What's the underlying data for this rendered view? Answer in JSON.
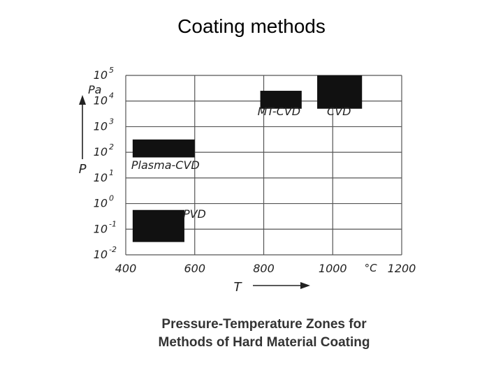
{
  "slide": {
    "title": "Coating methods"
  },
  "caption": {
    "line1": "Pressure-Temperature Zones for",
    "line2": "Methods of Hard Material Coating"
  },
  "chart_data": {
    "type": "range-bar",
    "xlabel": "T",
    "xunit": "°C",
    "ylabel": "P",
    "yunit": "Pa",
    "xlim": [
      400,
      1200
    ],
    "xticks": [
      "400",
      "600",
      "800",
      "1000",
      "1200"
    ],
    "yscale": "log",
    "ylim_exponent": [
      -2,
      5
    ],
    "yticks_base": "10",
    "yticks_exp": [
      "-2",
      "-1",
      "0",
      "1",
      "2",
      "3",
      "4",
      "5"
    ],
    "grid": true,
    "zones": [
      {
        "label": "PVD",
        "t_min": 420,
        "t_max": 570,
        "p_exp_min": -1.5,
        "p_exp_max": -0.25
      },
      {
        "label": "Plasma-CVD",
        "t_min": 420,
        "t_max": 600,
        "p_exp_min": 1.8,
        "p_exp_max": 2.5
      },
      {
        "label": "MT-CVD",
        "t_min": 790,
        "t_max": 910,
        "p_exp_min": 3.7,
        "p_exp_max": 4.4
      },
      {
        "label": "CVD",
        "t_min": 955,
        "t_max": 1085,
        "p_exp_min": 3.7,
        "p_exp_max": 5.0
      }
    ]
  },
  "colors": {
    "grid": "#555555",
    "zone": "#111111",
    "text": "#222222"
  }
}
